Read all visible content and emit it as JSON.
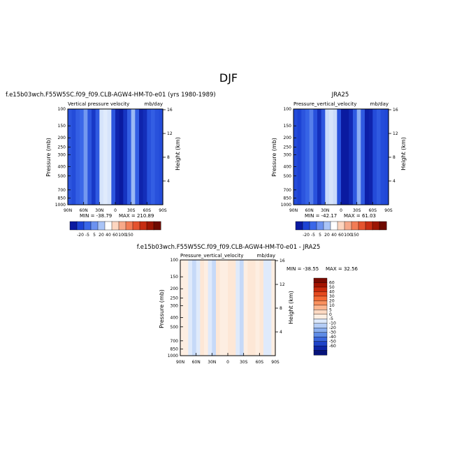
{
  "figure": {
    "title": "DJF"
  },
  "chart_data": [
    {
      "type": "heatmap",
      "title": "f.e15b03wch.F55W5SC.f09_f09.CLB-AGW4-HM-T0-e01 (yrs 1980-1989)",
      "subtitle_left": "Vertical pressure velocity",
      "subtitle_right": "mb/day",
      "xlabel": "",
      "ylabel": "Pressure (mb)",
      "y2label": "Height (km)",
      "x_ticks": [
        "90N",
        "60N",
        "30N",
        "0",
        "30S",
        "60S",
        "90S"
      ],
      "y_ticks": [
        "100",
        "150",
        "200",
        "250",
        "300",
        "400",
        "500",
        "700",
        "850",
        "1000"
      ],
      "y2_ticks": [
        "4",
        "8",
        "12",
        "16"
      ],
      "min_text": "MIN = -38.79",
      "max_text": "MAX = 210.89",
      "colorbar_labels": [
        "-20",
        "-5",
        "5",
        "20",
        "40",
        "60",
        "100",
        "150"
      ],
      "colorbar_colors": [
        "#0a1aa0",
        "#1d43d4",
        "#3a67e8",
        "#6c92f0",
        "#a9c4f7",
        "#ffffff",
        "#fdd6c0",
        "#f7a98a",
        "#f27c55",
        "#e4532e",
        "#c72d12",
        "#9c1604",
        "#6e0a00"
      ],
      "columns": [
        -14,
        -16,
        -12,
        -10,
        -6,
        -14,
        -20,
        -13,
        2,
        3,
        2,
        -14,
        -24,
        -26,
        -21,
        -12,
        -3,
        -12,
        -24,
        -22,
        -15,
        -12,
        -15,
        -16
      ]
    },
    {
      "type": "heatmap",
      "title": "JRA25",
      "subtitle_left": "Pressure_vertical_velocity",
      "subtitle_right": "mb/day",
      "xlabel": "",
      "ylabel": "Pressure (mb)",
      "y2label": "Height (km)",
      "x_ticks": [
        "90N",
        "60N",
        "30N",
        "0",
        "30S",
        "60S",
        "90S"
      ],
      "y_ticks": [
        "100",
        "150",
        "200",
        "250",
        "300",
        "400",
        "500",
        "700",
        "850",
        "1000"
      ],
      "y2_ticks": [
        "4",
        "8",
        "12",
        "16"
      ],
      "min_text": "MIN = -42.17",
      "max_text": "MAX = 61.03",
      "colorbar_labels": [
        "-20",
        "-5",
        "5",
        "20",
        "40",
        "60",
        "100",
        "150"
      ],
      "colorbar_colors": [
        "#0a1aa0",
        "#1d43d4",
        "#3a67e8",
        "#6c92f0",
        "#a9c4f7",
        "#ffffff",
        "#fdd6c0",
        "#f7a98a",
        "#f27c55",
        "#e4532e",
        "#c72d12",
        "#9c1604",
        "#6e0a00"
      ],
      "columns": [
        -16,
        -18,
        -14,
        -11,
        -8,
        -15,
        -22,
        -14,
        1,
        2,
        1,
        -15,
        -26,
        -30,
        -23,
        -13,
        -4,
        -13,
        -25,
        -24,
        -16,
        -13,
        -16,
        -17
      ]
    },
    {
      "type": "heatmap",
      "title": "f.e15b03wch.F55W5SC.f09_f09.CLB-AGW4-HM-T0-e01 - JRA25",
      "subtitle_left": "Pressure_vertical_velocity",
      "subtitle_right": "mb/day",
      "xlabel": "",
      "ylabel": "Pressure (mb)",
      "y2label": "Height (km)",
      "x_ticks": [
        "90N",
        "60N",
        "30N",
        "0",
        "30S",
        "60S",
        "90S"
      ],
      "y_ticks": [
        "100",
        "150",
        "200",
        "250",
        "300",
        "400",
        "500",
        "700",
        "850",
        "1000"
      ],
      "y2_ticks": [
        "4",
        "8",
        "12",
        "16"
      ],
      "min_text": "MIN = -38.55",
      "max_text": "MAX = 32.56",
      "colorbar_labels": [
        "60",
        "50",
        "40",
        "30",
        "20",
        "10",
        "5",
        "0",
        "-5",
        "-10",
        "-20",
        "-30",
        "-40",
        "-50",
        "-60"
      ],
      "colorbar_colors": [
        "#7a0a00",
        "#a31300",
        "#c92a0c",
        "#e54a1f",
        "#f46a35",
        "#f8905e",
        "#fbb58f",
        "#fdd9c2",
        "#fdeee2",
        "#dde9fb",
        "#b5cdf6",
        "#8bafef",
        "#5f8ce6",
        "#3a66dc",
        "#1f43c8",
        "#0e25a6",
        "#06137a"
      ],
      "columns": [
        2,
        2,
        -4,
        -6,
        -3,
        3,
        2,
        -4,
        -6,
        3,
        2,
        2,
        4,
        3,
        -3,
        -6,
        2,
        3,
        3,
        2,
        3,
        -4,
        -5,
        2
      ]
    }
  ]
}
